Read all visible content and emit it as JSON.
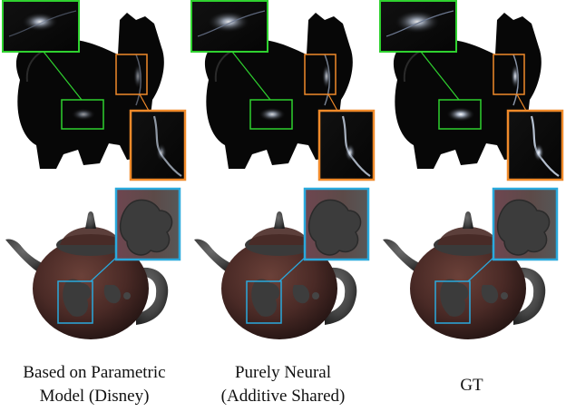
{
  "columns": [
    {
      "caption_lines": [
        "Based on Parametric",
        "Model (Disney)"
      ]
    },
    {
      "caption_lines": [
        "Purely Neural",
        "(Additive Shared)"
      ]
    },
    {
      "caption_lines": [
        "GT"
      ]
    }
  ],
  "colors": {
    "cat_inset_border": "#2fd12f",
    "cat_side_inset_border": "#f08a2a",
    "teapot_inset_border": "#2aa9dd",
    "cat_body": "#070707",
    "teapot_body": "#4a2a26",
    "teapot_lid": "#474747"
  }
}
